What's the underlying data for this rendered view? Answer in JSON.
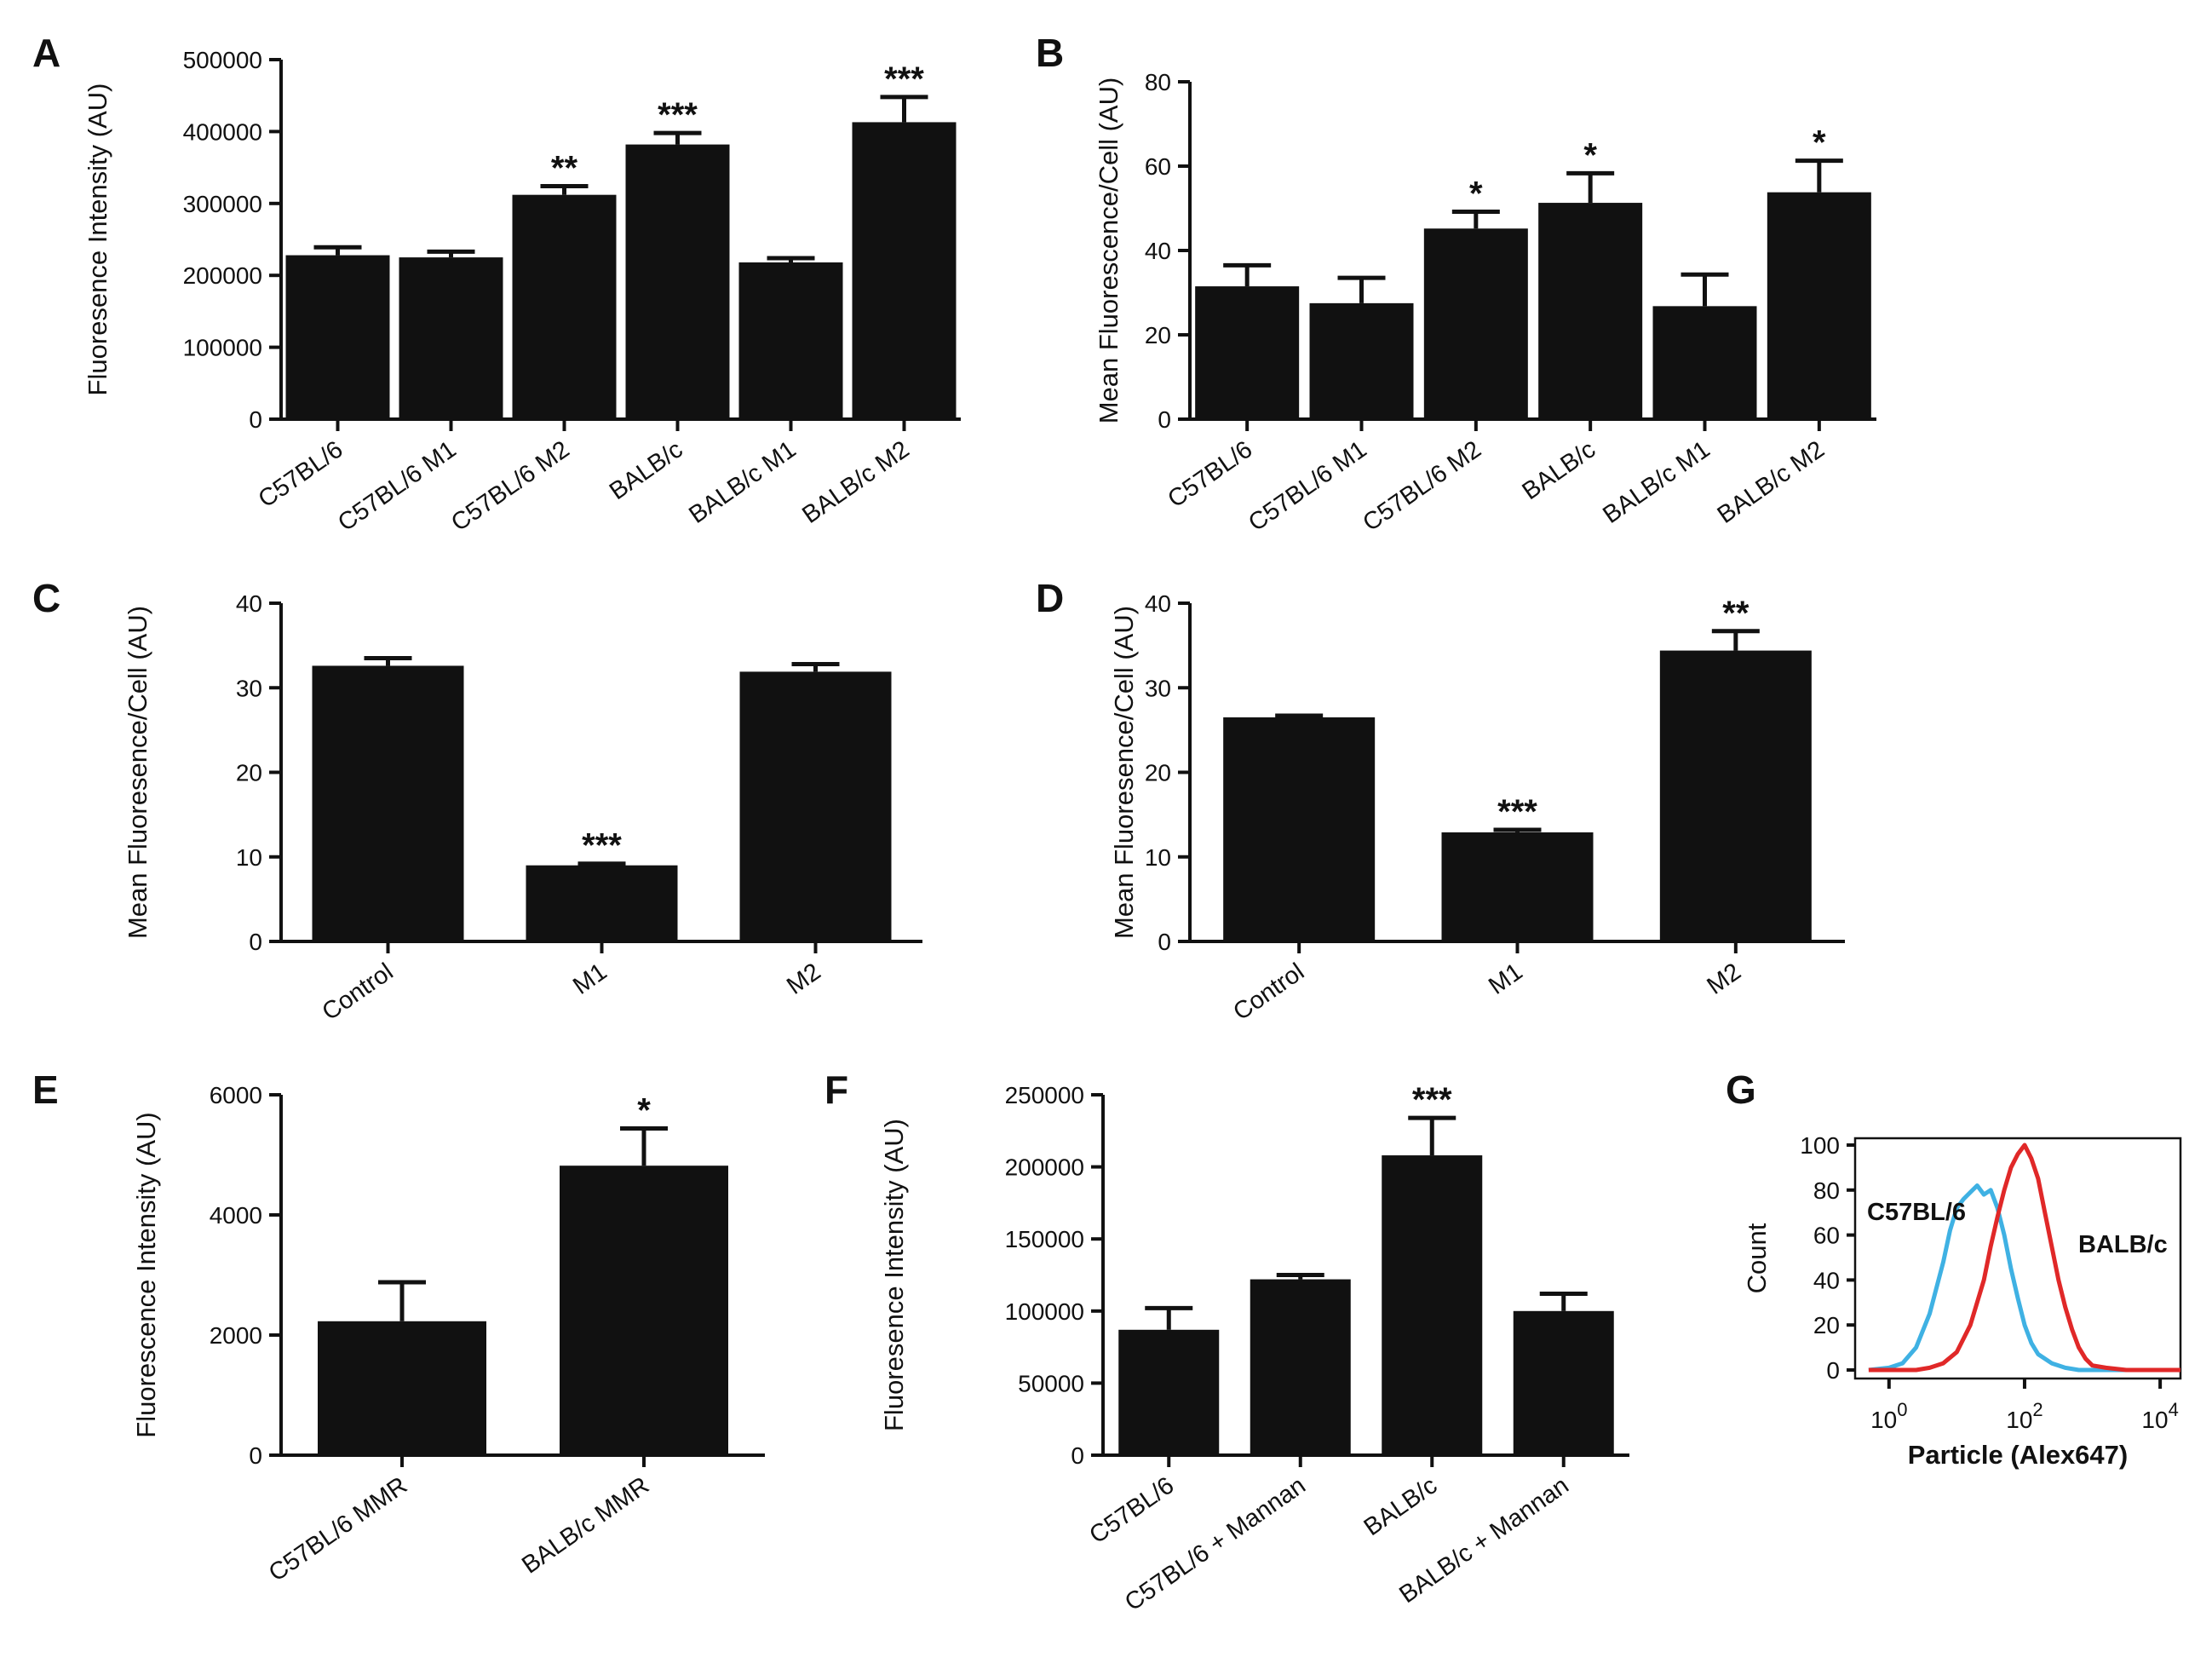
{
  "panels": [
    {
      "letter": "A",
      "type": "bar",
      "ylabel": "Fluoresence Intensity (AU)",
      "ylim": [
        0,
        500000
      ],
      "yticks": [
        0,
        100000,
        200000,
        300000,
        400000,
        500000
      ],
      "ytick_labels": [
        "0",
        "100000",
        "200000",
        "300000",
        "400000",
        "500000"
      ],
      "categories": [
        "C57BL/6",
        "C57BL/6 M1",
        "C57BL/6 M2",
        "BALB/c",
        "BALB/c M1",
        "BALB/c M2"
      ],
      "values": [
        228000,
        225000,
        312000,
        382000,
        218000,
        413000
      ],
      "errors": [
        11000,
        8000,
        12000,
        16000,
        6000,
        35000
      ],
      "significance": [
        "",
        "",
        "**",
        "***",
        "",
        "***"
      ]
    },
    {
      "letter": "B",
      "type": "bar",
      "ylabel": "Mean Fluorescence/Cell (AU)",
      "ylim": [
        0,
        80
      ],
      "yticks": [
        0,
        20,
        40,
        60,
        80
      ],
      "ytick_labels": [
        "0",
        "20",
        "40",
        "60",
        "80"
      ],
      "categories": [
        "C57BL/6",
        "C57BL/6 M1",
        "C57BL/6 M2",
        "BALB/c",
        "BALB/c M1",
        "BALB/c M2"
      ],
      "values": [
        31.5,
        27.5,
        45.2,
        51.3,
        26.8,
        53.8
      ],
      "errors": [
        5,
        6,
        4,
        7,
        7.5,
        7.5
      ],
      "significance": [
        "",
        "",
        "*",
        "*",
        "",
        "*"
      ]
    },
    {
      "letter": "C",
      "type": "bar",
      "ylabel": "Mean Fluoresence/Cell (AU)",
      "ylim": [
        0,
        40
      ],
      "yticks": [
        0,
        10,
        20,
        30,
        40
      ],
      "ytick_labels": [
        "0",
        "10",
        "20",
        "30",
        "40"
      ],
      "categories": [
        "Control",
        "M1",
        "M2"
      ],
      "values": [
        32.6,
        9.0,
        31.9
      ],
      "errors": [
        0.9,
        0.2,
        0.9
      ],
      "significance": [
        "",
        "***",
        ""
      ]
    },
    {
      "letter": "D",
      "type": "bar",
      "ylabel": "Mean Fluoresence/Cell (AU)",
      "ylim": [
        0,
        40
      ],
      "yticks": [
        0,
        10,
        20,
        30,
        40
      ],
      "ytick_labels": [
        "0",
        "10",
        "20",
        "30",
        "40"
      ],
      "categories": [
        "Control",
        "M1",
        "M2"
      ],
      "values": [
        26.5,
        12.9,
        34.4
      ],
      "errors": [
        0.2,
        0.3,
        2.3
      ],
      "significance": [
        "",
        "***",
        "**"
      ]
    },
    {
      "letter": "E",
      "type": "bar",
      "ylabel": "Fluorescence Intensity (AU)",
      "ylim": [
        0,
        6000
      ],
      "yticks": [
        0,
        2000,
        4000,
        6000
      ],
      "ytick_labels": [
        "0",
        "2000",
        "4000",
        "6000"
      ],
      "categories": [
        "C57BL/6 MMR",
        "BALB/c MMR"
      ],
      "values": [
        2230,
        4820
      ],
      "errors": [
        650,
        620
      ],
      "significance": [
        "",
        "*"
      ]
    },
    {
      "letter": "F",
      "type": "bar",
      "ylabel": "Fluoresence Intensity (AU)",
      "ylim": [
        0,
        250000
      ],
      "yticks": [
        0,
        50000,
        100000,
        150000,
        200000,
        250000
      ],
      "ytick_labels": [
        "0",
        "50000",
        "100000",
        "150000",
        "200000",
        "250000"
      ],
      "categories": [
        "C57BL/6",
        "C57BL/6 + Mannan",
        "BALB/c",
        "BALB/c + Mannan"
      ],
      "values": [
        87000,
        122000,
        208000,
        100000
      ],
      "errors": [
        15000,
        3000,
        26000,
        12000
      ],
      "significance": [
        "",
        "",
        "***",
        ""
      ]
    },
    {
      "letter": "G",
      "type": "histogram",
      "ylabel": "Count",
      "xlabel": "Particle (Alex647)",
      "ylim": [
        0,
        100
      ],
      "yticks": [
        0,
        20,
        40,
        60,
        80,
        100
      ],
      "ytick_labels": [
        "0",
        "20",
        "40",
        "60",
        "80",
        "100"
      ],
      "xlim_log10": [
        -0.5,
        4.3
      ],
      "xticks_exp": [
        "0",
        "2",
        "4"
      ],
      "xtick_base": "10",
      "series": [
        {
          "name": "C57BL/6",
          "color": "#3fb1e3",
          "x_log10": [
            -0.3,
            0.0,
            0.2,
            0.4,
            0.6,
            0.8,
            0.9,
            1.0,
            1.1,
            1.2,
            1.3,
            1.4,
            1.5,
            1.6,
            1.7,
            1.8,
            1.9,
            2.0,
            2.1,
            2.2,
            2.4,
            2.6,
            2.8,
            3.0,
            3.5,
            4.0,
            4.3
          ],
          "counts": [
            0,
            1,
            3,
            10,
            25,
            48,
            62,
            72,
            76,
            79,
            82,
            78,
            80,
            72,
            60,
            45,
            32,
            20,
            12,
            7,
            3,
            1,
            0,
            0,
            0,
            0,
            0
          ]
        },
        {
          "name": "BALB/c",
          "color": "#e02828",
          "x_log10": [
            -0.3,
            0.4,
            0.6,
            0.8,
            1.0,
            1.2,
            1.4,
            1.5,
            1.6,
            1.7,
            1.8,
            1.9,
            2.0,
            2.1,
            2.2,
            2.3,
            2.4,
            2.5,
            2.6,
            2.7,
            2.8,
            2.9,
            3.0,
            3.2,
            3.5,
            4.0,
            4.3
          ],
          "counts": [
            0,
            0,
            1,
            3,
            8,
            20,
            40,
            55,
            68,
            80,
            90,
            96,
            100,
            94,
            85,
            70,
            55,
            40,
            28,
            18,
            10,
            5,
            2,
            1,
            0,
            0,
            0
          ]
        }
      ]
    }
  ]
}
